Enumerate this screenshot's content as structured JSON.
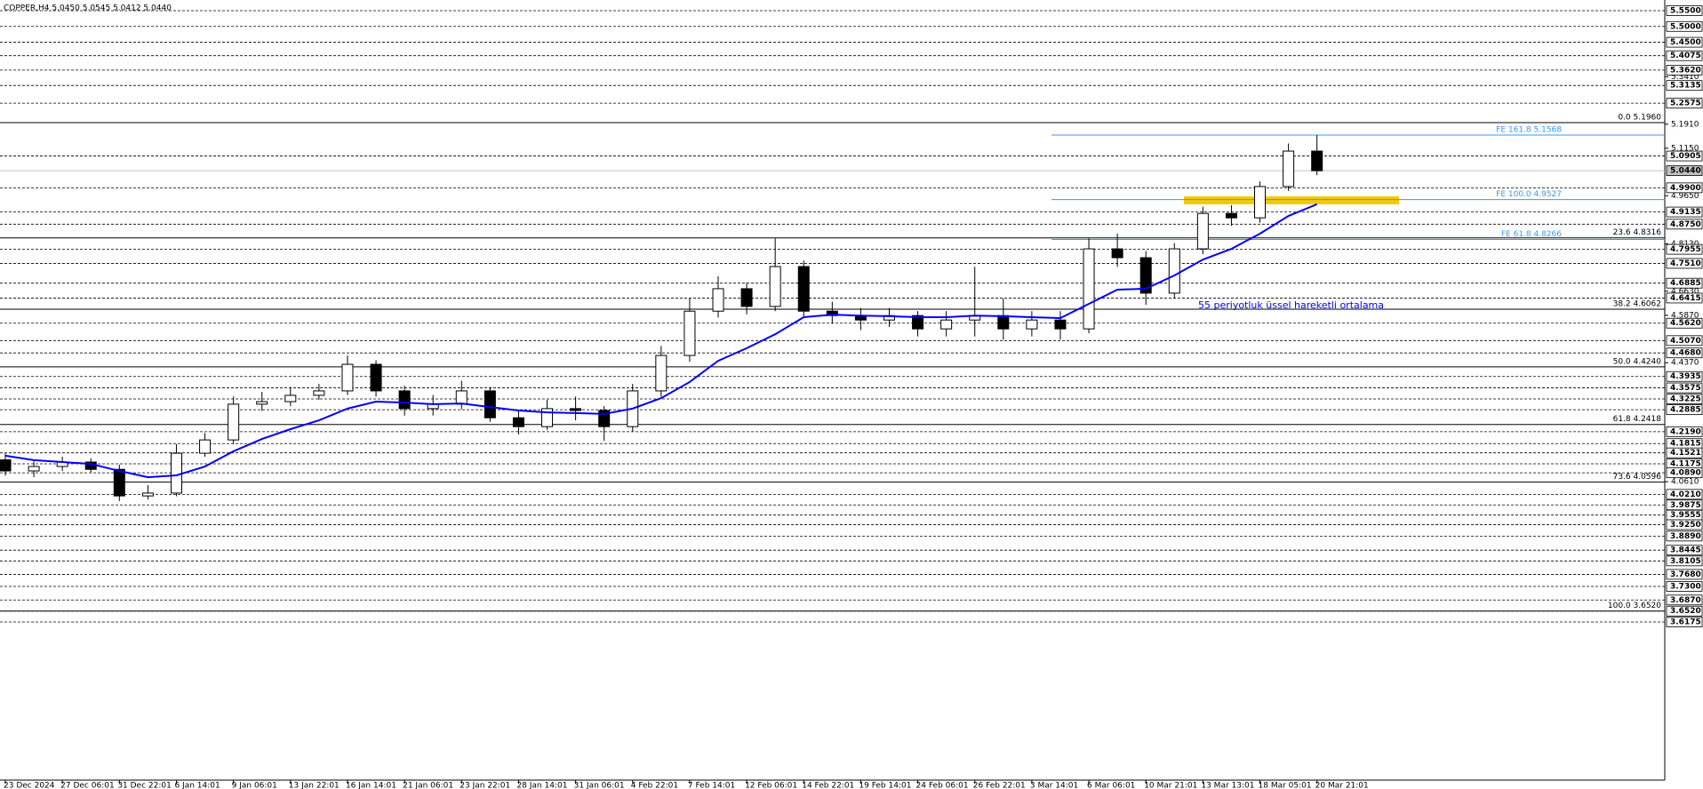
{
  "chart_data": {
    "type": "candlestick",
    "title": "COPPER,H4  5.0450 5.0545 5.0412 5.0440",
    "annotation": "55 periyotluk üssel hareketli ortalama",
    "categories": [
      "23 Dec 2024",
      null,
      "27 Dec 06:01",
      null,
      "31 Dec 22:01",
      null,
      "6 Jan 14:01",
      null,
      "9 Jan 06:01",
      null,
      "13 Jan 22:01",
      null,
      "16 Jan 14:01",
      null,
      "21 Jan 06:01",
      null,
      "23 Jan 22:01",
      null,
      "28 Jan 14:01",
      null,
      "31 Jan 06:01",
      null,
      "4 Feb 22:01",
      null,
      "7 Feb 14:01",
      null,
      "12 Feb 06:01",
      null,
      "14 Feb 22:01",
      null,
      "19 Feb 14:01",
      null,
      "24 Feb 06:01",
      null,
      "26 Feb 22:01",
      null,
      "3 Mar 14:01",
      null,
      "6 Mar 06:01",
      null,
      "10 Mar 21:01",
      null,
      "13 Mar 13:01",
      null,
      "18 Mar 05:01",
      null,
      "20 Mar 21:01"
    ],
    "open": [
      4.13,
      4.095,
      4.109,
      4.123,
      4.1,
      4.016,
      4.025,
      4.151,
      4.193,
      4.306,
      4.314,
      4.334,
      4.348,
      4.432,
      4.348,
      4.292,
      4.306,
      4.348,
      4.263,
      4.235,
      4.292,
      4.286,
      4.235,
      4.348,
      4.46,
      4.6,
      4.671,
      4.615,
      4.741,
      4.6,
      4.586,
      4.572,
      4.586,
      4.544,
      4.572,
      4.586,
      4.544,
      4.572,
      4.544,
      4.797,
      4.769,
      4.657,
      4.797,
      4.909,
      4.895,
      4.994,
      5.106
    ],
    "high": [
      4.15,
      4.125,
      4.14,
      4.135,
      4.115,
      4.05,
      4.18,
      4.215,
      4.33,
      4.345,
      4.36,
      4.37,
      4.46,
      4.445,
      4.365,
      4.335,
      4.38,
      4.36,
      4.285,
      4.32,
      4.33,
      4.3,
      4.37,
      4.49,
      4.64,
      4.71,
      4.69,
      4.83,
      4.76,
      4.63,
      4.61,
      4.61,
      4.6,
      4.6,
      4.74,
      4.64,
      4.6,
      4.6,
      4.83,
      4.845,
      4.79,
      4.815,
      4.93,
      4.935,
      5.01,
      5.13,
      5.157
    ],
    "low": [
      4.08,
      4.075,
      4.095,
      4.09,
      4.0,
      4.005,
      4.015,
      4.14,
      4.18,
      4.285,
      4.3,
      4.32,
      4.335,
      4.33,
      4.27,
      4.27,
      4.29,
      4.25,
      4.21,
      4.225,
      4.255,
      4.19,
      4.22,
      4.33,
      4.44,
      4.58,
      4.59,
      4.6,
      4.58,
      4.56,
      4.54,
      4.55,
      4.52,
      4.52,
      4.52,
      4.51,
      4.52,
      4.51,
      4.53,
      4.74,
      4.62,
      4.64,
      4.78,
      4.87,
      4.88,
      4.98,
      5.03
    ],
    "close": [
      4.095,
      4.109,
      4.123,
      4.1,
      4.016,
      4.025,
      4.151,
      4.193,
      4.306,
      4.314,
      4.334,
      4.348,
      4.432,
      4.348,
      4.292,
      4.306,
      4.348,
      4.263,
      4.235,
      4.292,
      4.286,
      4.235,
      4.348,
      4.46,
      4.6,
      4.671,
      4.615,
      4.741,
      4.6,
      4.586,
      4.572,
      4.586,
      4.544,
      4.572,
      4.586,
      4.544,
      4.572,
      4.544,
      4.797,
      4.769,
      4.657,
      4.797,
      4.909,
      4.895,
      4.994,
      5.106,
      5.044
    ],
    "up_color": "#ffffff",
    "down_color": "#000000",
    "series": [
      {
        "color": "#0000ff",
        "values": [
          4.143,
          4.129,
          4.123,
          4.117,
          4.095,
          4.075,
          4.081,
          4.109,
          4.157,
          4.196,
          4.227,
          4.255,
          4.292,
          4.314,
          4.311,
          4.306,
          4.308,
          4.297,
          4.286,
          4.28,
          4.278,
          4.275,
          4.292,
          4.325,
          4.376,
          4.443,
          4.483,
          4.527,
          4.581,
          4.589,
          4.586,
          4.584,
          4.581,
          4.581,
          4.586,
          4.584,
          4.581,
          4.578,
          4.623,
          4.668,
          4.671,
          4.713,
          4.763,
          4.797,
          4.845,
          4.901,
          4.938
        ]
      }
    ],
    "ylim": [
      3.112,
      5.578
    ],
    "yticks": [
      {
        "value": 5.341,
        "label": "5.3410"
      },
      {
        "value": 5.191,
        "label": "5.1910"
      },
      {
        "value": 5.115,
        "label": "5.1150"
      },
      {
        "value": 4.965,
        "label": "4.9650"
      },
      {
        "value": 4.813,
        "label": "4.8130"
      },
      {
        "value": 4.663,
        "label": "4.6630"
      },
      {
        "value": 4.587,
        "label": "4.5870"
      },
      {
        "value": 4.437,
        "label": "4.4370"
      },
      {
        "value": 4.061,
        "label": "4.0610"
      }
    ],
    "levels": [
      {
        "value": 5.55,
        "label": "5.5500"
      },
      {
        "value": 5.5,
        "label": "5.5000"
      },
      {
        "value": 5.45,
        "label": "5.4500"
      },
      5.4075,
      {
        "value": 5.362,
        "label": "5.3620"
      },
      5.3135,
      5.2575,
      5.0905,
      {
        "value": 4.99,
        "label": "4.9900"
      },
      4.9135,
      {
        "value": 4.875,
        "label": "4.8750"
      },
      4.7955,
      {
        "value": 4.751,
        "label": "4.7510"
      },
      4.6885,
      4.6415,
      {
        "value": 4.562,
        "label": "4.5620"
      },
      {
        "value": 4.507,
        "label": "4.5070"
      },
      {
        "value": 4.468,
        "label": "4.4680"
      },
      4.3935,
      4.3575,
      4.3225,
      4.2885,
      {
        "value": 4.219,
        "label": "4.2190"
      },
      4.1815,
      4.1521,
      4.1175,
      {
        "value": 4.089,
        "label": "4.0890"
      },
      {
        "value": 4.021,
        "label": "4.0210"
      },
      3.9875,
      3.9555,
      {
        "value": 3.925,
        "label": "3.9250"
      },
      {
        "value": 3.889,
        "label": "3.8890"
      },
      3.8445,
      3.8105,
      {
        "value": 3.768,
        "label": "3.7680"
      },
      {
        "value": 3.73,
        "label": "3.7300"
      },
      {
        "value": 3.687,
        "label": "3.6870"
      },
      {
        "value": 3.652,
        "label": "3.6520"
      },
      3.6175
    ],
    "fib_levels": [
      {
        "value": 5.196,
        "label": "0.0  5.1960"
      },
      {
        "value": 4.8316,
        "label": "23.6  4.8316"
      },
      {
        "value": 4.6062,
        "label": "38.2  4.6062"
      },
      {
        "value": 4.424,
        "label": "50.0  4.4240"
      },
      {
        "value": 4.2418,
        "label": "61.8  4.2418"
      },
      {
        "value": 4.0596,
        "label": "73.6  4.0596"
      },
      {
        "value": 3.652,
        "label": "100.0  3.6520"
      }
    ],
    "fe_levels": [
      {
        "value": 5.1568,
        "label": "FE 161.8  5.1568"
      },
      {
        "value": 4.9527,
        "label": "FE 100.0  4.9527"
      },
      {
        "value": 4.8266,
        "label": "FE 61.8  4.8266"
      }
    ],
    "fe_color": "#3399ff",
    "last_price": {
      "value": 5.044,
      "label": "5.0440"
    }
  }
}
